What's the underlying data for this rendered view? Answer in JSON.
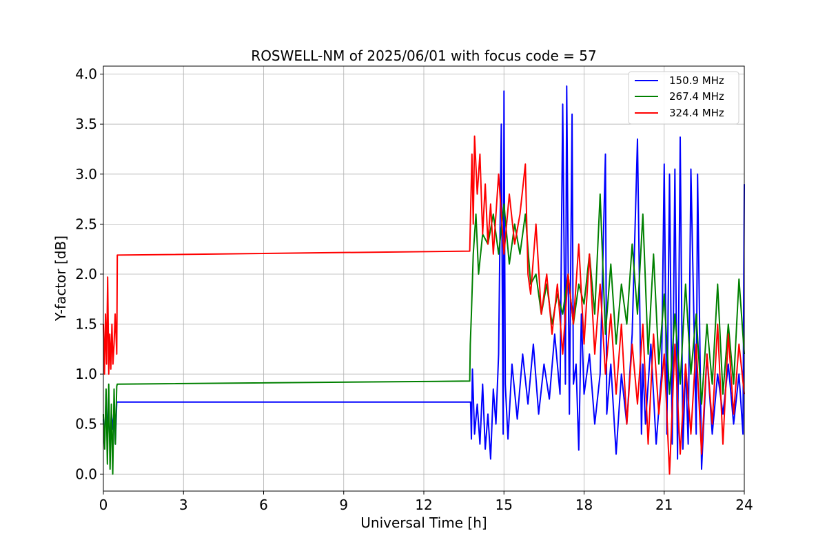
{
  "chart_data": {
    "type": "line",
    "title": "ROSWELL-NM of 2025/06/01 with focus code = 57",
    "xlabel": "Universal Time [h]",
    "ylabel": "Y-factor [dB]",
    "xlim": [
      0,
      24
    ],
    "ylim": [
      -0.17,
      4.08
    ],
    "xticks": [
      "0",
      "3",
      "6",
      "9",
      "12",
      "15",
      "18",
      "21",
      "24"
    ],
    "yticks": [
      "0.0",
      "0.5",
      "1.0",
      "1.5",
      "2.0",
      "2.5",
      "3.0",
      "3.5",
      "4.0"
    ],
    "grid": true,
    "legend_position": "top-right",
    "series": [
      {
        "name": "150.9 MHz",
        "color": "#0000ff",
        "x": [
          0,
          0.05,
          0.1,
          0.15,
          0.2,
          0.25,
          0.3,
          0.35,
          0.4,
          0.45,
          0.5,
          0.52,
          13.75,
          13.78,
          13.82,
          13.9,
          14.0,
          14.1,
          14.2,
          14.3,
          14.4,
          14.5,
          14.6,
          14.7,
          14.8,
          14.9,
          14.97,
          15.0,
          15.05,
          15.15,
          15.3,
          15.5,
          15.7,
          15.9,
          16.1,
          16.3,
          16.5,
          16.7,
          16.9,
          17.1,
          17.2,
          17.3,
          17.35,
          17.45,
          17.55,
          17.6,
          17.7,
          17.8,
          17.9,
          18.0,
          18.2,
          18.4,
          18.6,
          18.8,
          18.85,
          19.0,
          19.2,
          19.4,
          19.6,
          19.8,
          20.0,
          20.15,
          20.2,
          20.3,
          20.5,
          20.7,
          20.9,
          21.0,
          21.1,
          21.2,
          21.3,
          21.4,
          21.5,
          21.6,
          21.7,
          21.8,
          21.9,
          22.0,
          22.2,
          22.25,
          22.4,
          22.6,
          22.8,
          23.0,
          23.2,
          23.4,
          23.6,
          23.8,
          23.95,
          24.0
        ],
        "y": [
          0.55,
          0.3,
          0.8,
          0.4,
          0.68,
          0.25,
          0.6,
          0.45,
          0.66,
          0.3,
          0.72,
          0.72,
          0.72,
          0.35,
          1.05,
          0.4,
          0.7,
          0.3,
          0.9,
          0.25,
          0.6,
          0.15,
          0.85,
          0.5,
          1.2,
          3.5,
          0.4,
          3.83,
          0.9,
          0.35,
          1.1,
          0.55,
          1.2,
          0.7,
          1.3,
          0.6,
          1.1,
          0.75,
          1.4,
          0.8,
          3.7,
          0.9,
          3.88,
          0.6,
          3.6,
          0.9,
          1.1,
          0.24,
          1.6,
          0.8,
          1.2,
          0.5,
          1.0,
          3.2,
          0.6,
          1.1,
          0.2,
          1.0,
          0.5,
          1.4,
          3.35,
          0.4,
          1.1,
          0.5,
          1.3,
          0.3,
          1.0,
          3.1,
          0.4,
          3.0,
          0.3,
          3.05,
          0.15,
          3.37,
          0.25,
          1.1,
          0.3,
          3.05,
          0.4,
          3.0,
          0.05,
          1.2,
          0.4,
          1.0,
          0.6,
          1.1,
          0.5,
          1.0,
          0.4,
          2.9
        ]
      },
      {
        "name": "267.4 MHz",
        "color": "#008000",
        "x": [
          0,
          0.05,
          0.1,
          0.15,
          0.2,
          0.25,
          0.3,
          0.35,
          0.4,
          0.45,
          0.5,
          0.52,
          13.72,
          13.74,
          13.78,
          13.85,
          13.95,
          14.05,
          14.2,
          14.4,
          14.6,
          14.8,
          15.0,
          15.2,
          15.4,
          15.6,
          15.8,
          16.0,
          16.2,
          16.4,
          16.6,
          16.8,
          17.0,
          17.2,
          17.4,
          17.6,
          17.8,
          18.0,
          18.2,
          18.4,
          18.6,
          18.8,
          19.0,
          19.2,
          19.4,
          19.6,
          19.8,
          20.0,
          20.2,
          20.4,
          20.6,
          20.8,
          21.0,
          21.2,
          21.4,
          21.6,
          21.8,
          22.0,
          22.2,
          22.4,
          22.6,
          22.8,
          23.0,
          23.2,
          23.4,
          23.6,
          23.8,
          24.0
        ],
        "y": [
          0.6,
          0.25,
          0.85,
          0.1,
          0.9,
          0.05,
          0.7,
          0.0,
          0.85,
          0.3,
          0.88,
          0.9,
          0.93,
          1.3,
          1.6,
          2.2,
          2.6,
          2.0,
          2.4,
          2.3,
          2.6,
          2.2,
          2.7,
          2.1,
          2.5,
          2.2,
          2.6,
          1.9,
          2.0,
          1.6,
          1.9,
          1.5,
          1.8,
          1.6,
          2.0,
          1.5,
          1.9,
          1.7,
          2.2,
          1.6,
          2.8,
          1.4,
          2.1,
          1.3,
          1.9,
          1.5,
          2.3,
          1.6,
          2.6,
          1.2,
          2.2,
          1.1,
          1.8,
          0.8,
          1.6,
          0.9,
          1.9,
          1.0,
          1.6,
          0.7,
          1.5,
          0.9,
          1.9,
          0.8,
          1.5,
          0.9,
          1.95,
          1.2
        ]
      },
      {
        "name": "324.4 MHz",
        "color": "#ff0000",
        "x": [
          0,
          0.04,
          0.08,
          0.12,
          0.16,
          0.2,
          0.24,
          0.28,
          0.32,
          0.36,
          0.4,
          0.44,
          0.5,
          0.52,
          13.72,
          13.75,
          13.8,
          13.85,
          13.9,
          14.0,
          14.1,
          14.2,
          14.3,
          14.4,
          14.5,
          14.6,
          14.8,
          15.0,
          15.2,
          15.4,
          15.6,
          15.8,
          15.9,
          16.0,
          16.2,
          16.4,
          16.6,
          16.8,
          17.0,
          17.2,
          17.4,
          17.6,
          17.8,
          18.0,
          18.2,
          18.4,
          18.6,
          18.8,
          19.0,
          19.2,
          19.4,
          19.6,
          19.8,
          20.0,
          20.2,
          20.4,
          20.6,
          20.8,
          21.0,
          21.2,
          21.4,
          21.6,
          21.8,
          22.0,
          22.2,
          22.4,
          22.6,
          22.8,
          23.0,
          23.2,
          23.4,
          23.6,
          23.8,
          24.0
        ],
        "y": [
          1.5,
          1.0,
          1.6,
          1.1,
          1.97,
          1.0,
          1.4,
          1.05,
          1.5,
          1.1,
          1.3,
          1.6,
          1.2,
          2.19,
          2.23,
          2.6,
          3.2,
          2.5,
          3.38,
          2.8,
          3.2,
          2.4,
          2.9,
          2.3,
          2.7,
          2.2,
          3.0,
          2.2,
          2.8,
          2.3,
          2.6,
          3.1,
          2.0,
          1.8,
          2.5,
          1.6,
          2.0,
          1.4,
          1.9,
          1.2,
          2.0,
          1.5,
          2.3,
          1.3,
          2.2,
          1.2,
          1.9,
          1.0,
          1.6,
          0.8,
          1.5,
          0.5,
          1.3,
          0.7,
          1.5,
          0.3,
          1.4,
          0.6,
          1.2,
          0.0,
          1.3,
          0.2,
          1.1,
          0.4,
          1.3,
          0.2,
          1.2,
          0.5,
          1.5,
          0.3,
          1.4,
          0.6,
          1.3,
          0.8
        ]
      }
    ]
  }
}
